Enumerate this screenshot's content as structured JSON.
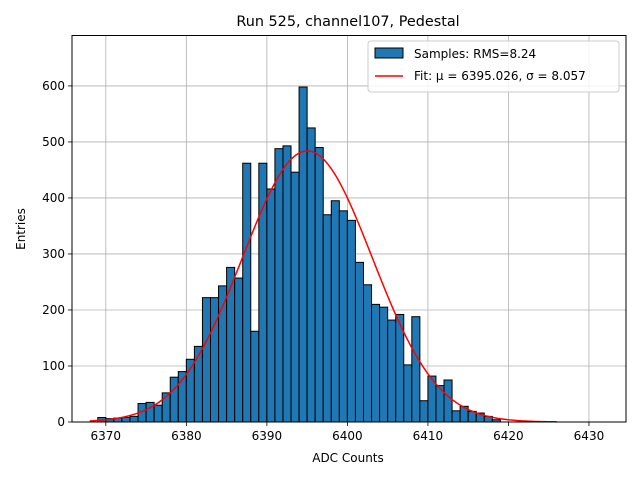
{
  "chart_data": {
    "type": "bar",
    "title": "Run 525, channel107, Pedestal",
    "xlabel": "ADC Counts",
    "ylabel": "Entries",
    "xlim": [
      6365.8,
      6434.6
    ],
    "ylim": [
      0,
      690
    ],
    "xticks": [
      6370,
      6380,
      6390,
      6400,
      6410,
      6420,
      6430
    ],
    "yticks": [
      0,
      100,
      200,
      300,
      400,
      500,
      600
    ],
    "grid": true,
    "legend_position": "top-right",
    "bin_width": 1,
    "bins": {
      "left_edges": [
        6369,
        6370,
        6371,
        6372,
        6373,
        6374,
        6375,
        6376,
        6377,
        6378,
        6379,
        6380,
        6381,
        6382,
        6383,
        6384,
        6385,
        6386,
        6387,
        6388,
        6389,
        6390,
        6391,
        6392,
        6393,
        6394,
        6395,
        6396,
        6397,
        6398,
        6399,
        6400,
        6401,
        6402,
        6403,
        6404,
        6405,
        6406,
        6407,
        6408,
        6409,
        6410,
        6411,
        6412,
        6413,
        6414,
        6415,
        6416,
        6417,
        6418
      ],
      "counts": [
        8,
        6,
        7,
        8,
        10,
        33,
        35,
        30,
        52,
        80,
        90,
        112,
        135,
        222,
        222,
        243,
        276,
        257,
        462,
        162,
        462,
        416,
        488,
        493,
        446,
        598,
        525,
        490,
        370,
        395,
        377,
        360,
        285,
        245,
        210,
        205,
        182,
        192,
        102,
        188,
        38,
        82,
        65,
        75,
        20,
        28,
        19,
        16,
        10,
        4
      ]
    },
    "series": [
      {
        "name": "Samples: RMS=8.24",
        "kind": "histogram",
        "color": "#1f77b4",
        "edgecolor": "#000000"
      },
      {
        "name": "Fit: μ = 6395.026, σ = 8.057",
        "kind": "gaussian-fit",
        "color": "#ff0000",
        "mu": 6395.026,
        "sigma": 8.057,
        "amplitude": 484,
        "x_range": [
          6368,
          6426
        ]
      }
    ]
  }
}
